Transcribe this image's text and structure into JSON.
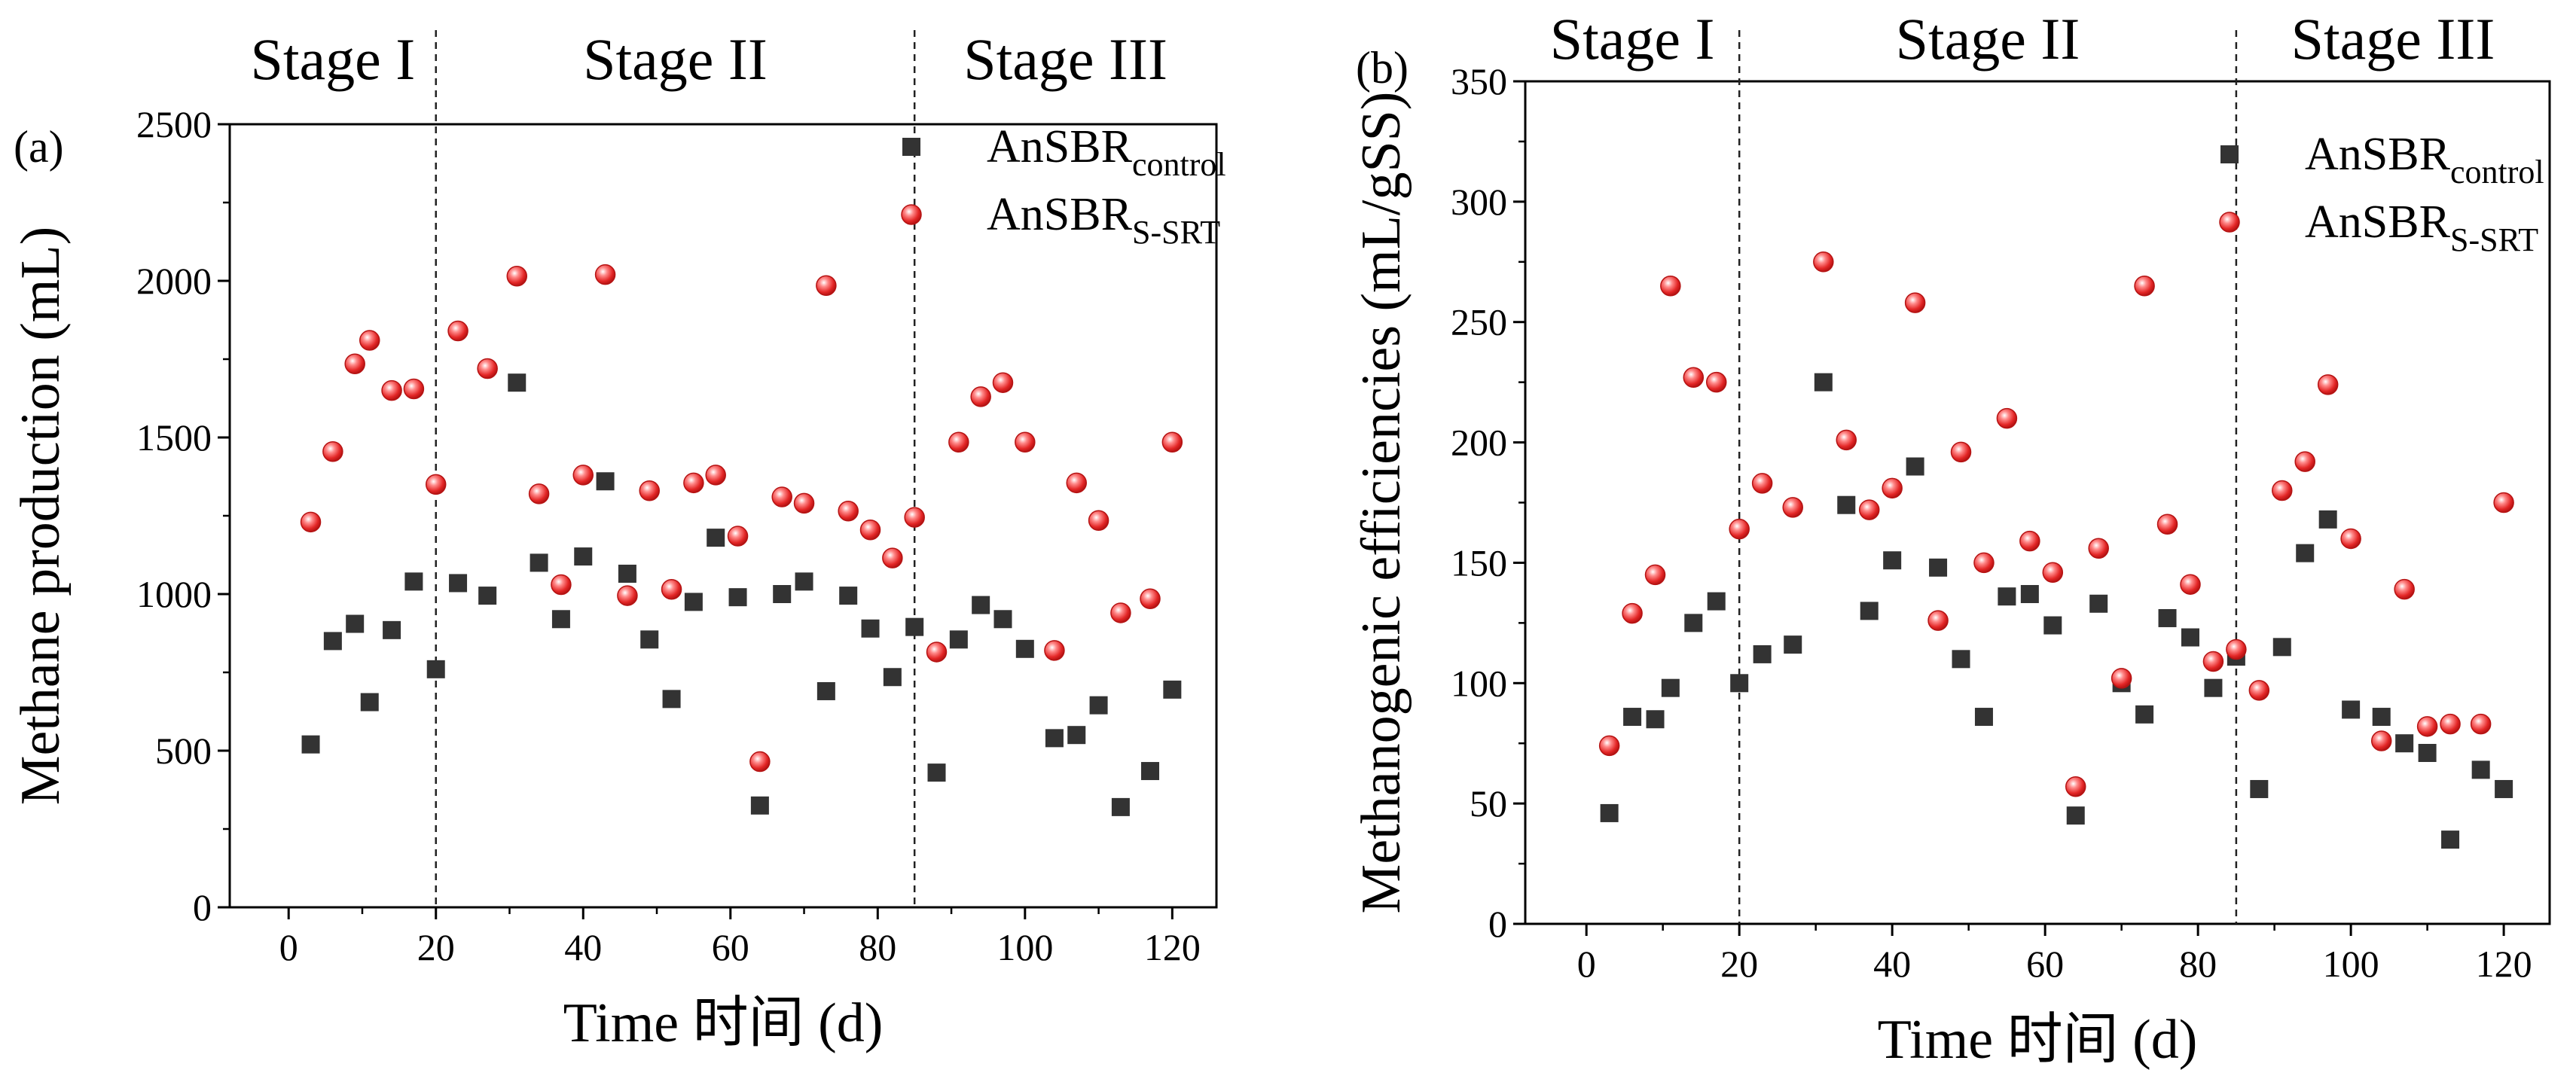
{
  "chart_data": [
    {
      "type": "scatter",
      "panel_label": "(a)",
      "title": "",
      "xlabel": "Time  时间 (d)",
      "ylabel": "Methane production (mL)",
      "xlim": [
        -8,
        126
      ],
      "ylim": [
        0,
        2500
      ],
      "xticks": [
        0,
        20,
        40,
        60,
        80,
        100,
        120
      ],
      "yticks": [
        0,
        500,
        1000,
        1500,
        2000,
        2500
      ],
      "stage_boundaries": [
        20,
        85
      ],
      "stages": [
        "Stage I",
        "Stage II",
        "Stage III"
      ],
      "legend_position": "top-right",
      "series": [
        {
          "name": "AnSBR",
          "subscript": "control",
          "marker": "square",
          "color": "#333333",
          "x": [
            3,
            6,
            9,
            11,
            14,
            17,
            20,
            23,
            27,
            31,
            34,
            37,
            40,
            43,
            46,
            49,
            52,
            55,
            58,
            61,
            64,
            67,
            70,
            73,
            76,
            79,
            82,
            85,
            88,
            91,
            94,
            97,
            100,
            104,
            107,
            110,
            113,
            117,
            120
          ],
          "y": [
            520,
            850,
            905,
            655,
            885,
            1040,
            760,
            1035,
            995,
            1675,
            1100,
            920,
            1120,
            1360,
            1065,
            855,
            665,
            975,
            1180,
            990,
            325,
            1000,
            1040,
            690,
            995,
            890,
            735,
            895,
            430,
            855,
            965,
            920,
            825,
            540,
            550,
            645,
            320,
            435,
            695
          ]
        },
        {
          "name": "AnSBR",
          "subscript": "S-SRT",
          "marker": "circle",
          "color": "#e32626",
          "x": [
            3,
            6,
            9,
            11,
            14,
            17,
            20,
            23,
            27,
            31,
            34,
            37,
            40,
            43,
            46,
            49,
            52,
            55,
            58,
            61,
            64,
            67,
            70,
            73,
            76,
            79,
            82,
            85,
            88,
            91,
            94,
            97,
            100,
            104,
            107,
            110,
            113,
            117,
            120
          ],
          "y": [
            1230,
            1455,
            1735,
            1810,
            1650,
            1655,
            1350,
            1840,
            1720,
            2015,
            1320,
            1030,
            1380,
            2020,
            995,
            1330,
            1015,
            1355,
            1380,
            1185,
            465,
            1310,
            1290,
            1985,
            1265,
            1205,
            1115,
            1245,
            815,
            1485,
            1630,
            1675,
            1485,
            820,
            1355,
            1235,
            940,
            985,
            1485
          ]
        }
      ]
    },
    {
      "type": "scatter",
      "panel_label": "(b)",
      "title": "",
      "xlabel": "Time  时间 (d)",
      "ylabel": "Methanogenic efficiencies  (mL/gSS)",
      "xlim": [
        -8,
        126
      ],
      "ylim": [
        0,
        350
      ],
      "xticks": [
        0,
        20,
        40,
        60,
        80,
        100,
        120
      ],
      "yticks": [
        0,
        50,
        100,
        150,
        200,
        250,
        300,
        350
      ],
      "stage_boundaries": [
        20,
        85
      ],
      "stages": [
        "Stage I",
        "Stage II",
        "Stage III"
      ],
      "legend_position": "top-right",
      "series": [
        {
          "name": "AnSBR",
          "subscript": "control",
          "marker": "square",
          "color": "#333333",
          "x": [
            3,
            6,
            9,
            11,
            14,
            17,
            20,
            23,
            27,
            31,
            34,
            37,
            40,
            43,
            46,
            49,
            52,
            55,
            58,
            61,
            64,
            67,
            70,
            73,
            76,
            79,
            82,
            85,
            88,
            91,
            94,
            97,
            100,
            104,
            107,
            110,
            113,
            117,
            120
          ],
          "y": [
            46,
            86,
            85,
            98,
            125,
            134,
            100,
            112,
            116,
            225,
            174,
            130,
            151,
            190,
            148,
            110,
            86,
            136,
            137,
            124,
            45,
            133,
            100,
            87,
            127,
            119,
            98,
            111,
            56,
            115,
            154,
            168,
            89,
            86,
            75,
            71,
            35,
            64,
            56
          ]
        },
        {
          "name": "AnSBR",
          "subscript": "S-SRT",
          "marker": "circle",
          "color": "#e32626",
          "x": [
            3,
            6,
            9,
            11,
            14,
            17,
            20,
            23,
            27,
            31,
            34,
            37,
            40,
            43,
            46,
            49,
            52,
            55,
            58,
            61,
            64,
            67,
            70,
            73,
            76,
            79,
            82,
            85,
            88,
            91,
            94,
            97,
            100,
            104,
            107,
            110,
            113,
            117,
            120
          ],
          "y": [
            74,
            129,
            145,
            265,
            227,
            225,
            164,
            183,
            173,
            275,
            201,
            172,
            181,
            258,
            126,
            196,
            150,
            210,
            159,
            146,
            57,
            156,
            102,
            265,
            166,
            141,
            109,
            114,
            97,
            180,
            192,
            224,
            160,
            76,
            139,
            82,
            83,
            83,
            175
          ]
        }
      ]
    }
  ]
}
